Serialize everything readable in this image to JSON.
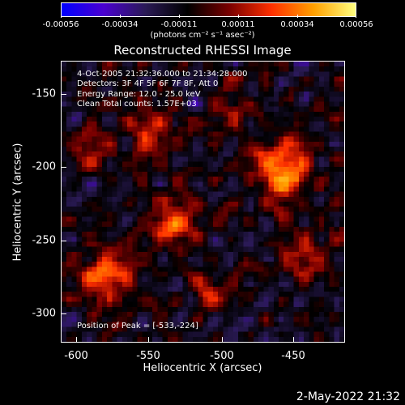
{
  "colorbar": {
    "ticks": [
      "-0.00056",
      "-0.00034",
      "-0.00011",
      "0.00011",
      "0.00034",
      "0.00056"
    ],
    "units": "(photons cm⁻² s⁻¹ asec⁻²)",
    "colors": [
      "#0000ff",
      "#4a00d0",
      "#2a1a55",
      "#000000",
      "#7a0000",
      "#ff3000",
      "#ffa000",
      "#ffff80"
    ]
  },
  "title": "Reconstructed RHESSI Image",
  "info": {
    "time_range": "4-Oct-2005 21:32:36.000 to 21:34:28.000",
    "detectors": "Detectors: 3F 4F 5F 6F 7F 8F, Att 0",
    "energy": "Energy Range: 12.0 - 25.0 keV",
    "method": "Clean     Total counts: 1.57E+03",
    "peak": "Position of Peak = [-533,-224]"
  },
  "axes": {
    "xlabel": "Heliocentric X (arcsec)",
    "ylabel": "Heliocentric Y (arcsec)",
    "xticks": [
      "-600",
      "-550",
      "-500",
      "-450"
    ],
    "yticks": [
      "-150",
      "-200",
      "-250",
      "-300"
    ]
  },
  "timestamp": "2-May-2022 21:32"
}
